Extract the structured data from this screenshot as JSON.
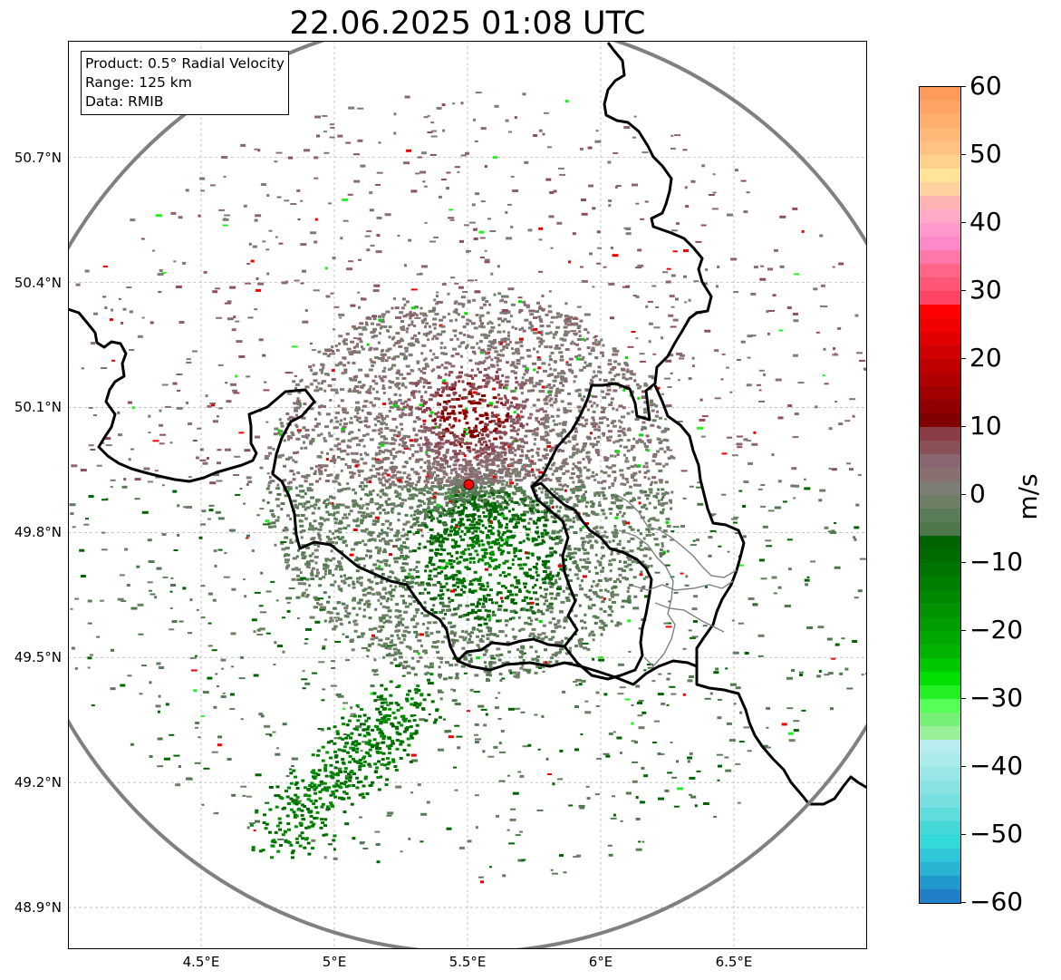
{
  "title": "22.06.2025 01:08 UTC",
  "info_box": {
    "product": "Product: 0.5° Radial Velocity",
    "range": "Range: 125 km",
    "data": "Data: RMIB"
  },
  "map": {
    "lon_range": [
      4.0,
      7.0
    ],
    "lat_range": [
      48.8,
      50.98
    ],
    "radar_site": {
      "lon": 5.505,
      "lat": 49.915
    },
    "range_km": 125,
    "lat_ticks": [
      {
        "value": 48.9,
        "label": "48.9°N"
      },
      {
        "value": 49.2,
        "label": "49.2°N"
      },
      {
        "value": 49.5,
        "label": "49.5°N"
      },
      {
        "value": 49.8,
        "label": "49.8°N"
      },
      {
        "value": 50.1,
        "label": "50.1°N"
      },
      {
        "value": 50.4,
        "label": "50.4°N"
      },
      {
        "value": 50.7,
        "label": "50.7°N"
      }
    ],
    "lon_ticks": [
      {
        "value": 4.5,
        "label": "4.5°E"
      },
      {
        "value": 5.0,
        "label": "5°E"
      },
      {
        "value": 5.5,
        "label": "5.5°E"
      },
      {
        "value": 6.0,
        "label": "6°E"
      },
      {
        "value": 6.5,
        "label": "6.5°E"
      }
    ],
    "colors": {
      "border": "#000000",
      "subborder": "#808080",
      "range_ring": "#808080",
      "grid": "#b0b0b0",
      "radar_site": "#ff0000"
    }
  },
  "colorbar": {
    "unit": "m/s",
    "min": -60,
    "max": 60,
    "ticks": [
      {
        "value": 60,
        "label": "60"
      },
      {
        "value": 50,
        "label": "50"
      },
      {
        "value": 40,
        "label": "40"
      },
      {
        "value": 30,
        "label": "30"
      },
      {
        "value": 20,
        "label": "20"
      },
      {
        "value": 10,
        "label": "10"
      },
      {
        "value": 0,
        "label": "0"
      },
      {
        "value": -10,
        "label": "−10"
      },
      {
        "value": -20,
        "label": "−20"
      },
      {
        "value": -30,
        "label": "−30"
      },
      {
        "value": -40,
        "label": "−40"
      },
      {
        "value": -50,
        "label": "−50"
      },
      {
        "value": -60,
        "label": "−60"
      }
    ],
    "segments": [
      {
        "from": 58,
        "to": 60,
        "color": "#ff9b5a"
      },
      {
        "from": 56,
        "to": 58,
        "color": "#ffa464"
      },
      {
        "from": 54,
        "to": 56,
        "color": "#ffae6e"
      },
      {
        "from": 52,
        "to": 54,
        "color": "#ffb878"
      },
      {
        "from": 50,
        "to": 52,
        "color": "#ffc282"
      },
      {
        "from": 48,
        "to": 50,
        "color": "#ffd28c"
      },
      {
        "from": 46,
        "to": 48,
        "color": "#ffe396"
      },
      {
        "from": 44,
        "to": 46,
        "color": "#ffd2a0"
      },
      {
        "from": 42,
        "to": 44,
        "color": "#ffb4b4"
      },
      {
        "from": 40,
        "to": 42,
        "color": "#ffaac8"
      },
      {
        "from": 38,
        "to": 40,
        "color": "#ff99cc"
      },
      {
        "from": 36,
        "to": 38,
        "color": "#ff88c8"
      },
      {
        "from": 34,
        "to": 36,
        "color": "#ff77aa"
      },
      {
        "from": 32,
        "to": 34,
        "color": "#ff6688"
      },
      {
        "from": 30,
        "to": 32,
        "color": "#ff5577"
      },
      {
        "from": 28,
        "to": 30,
        "color": "#ff4466"
      },
      {
        "from": 26,
        "to": 28,
        "color": "#ff0000"
      },
      {
        "from": 24,
        "to": 26,
        "color": "#f00000"
      },
      {
        "from": 22,
        "to": 24,
        "color": "#e00000"
      },
      {
        "from": 20,
        "to": 22,
        "color": "#d00000"
      },
      {
        "from": 18,
        "to": 20,
        "color": "#c00000"
      },
      {
        "from": 16,
        "to": 18,
        "color": "#b00000"
      },
      {
        "from": 14,
        "to": 16,
        "color": "#a00000"
      },
      {
        "from": 12,
        "to": 14,
        "color": "#900000"
      },
      {
        "from": 10,
        "to": 12,
        "color": "#800000"
      },
      {
        "from": 8,
        "to": 10,
        "color": "#8c3c44"
      },
      {
        "from": 6,
        "to": 8,
        "color": "#8a5058"
      },
      {
        "from": 4,
        "to": 6,
        "color": "#8a6670"
      },
      {
        "from": 2,
        "to": 4,
        "color": "#887070"
      },
      {
        "from": 0,
        "to": 2,
        "color": "#7d7d76"
      },
      {
        "from": -2,
        "to": 0,
        "color": "#6d8066"
      },
      {
        "from": -4,
        "to": -2,
        "color": "#5b7c58"
      },
      {
        "from": -6,
        "to": -4,
        "color": "#4e784c"
      },
      {
        "from": -8,
        "to": -6,
        "color": "#006400"
      },
      {
        "from": -10,
        "to": -8,
        "color": "#006c00"
      },
      {
        "from": -12,
        "to": -10,
        "color": "#007400"
      },
      {
        "from": -14,
        "to": -12,
        "color": "#007e00"
      },
      {
        "from": -16,
        "to": -14,
        "color": "#008800"
      },
      {
        "from": -18,
        "to": -16,
        "color": "#009200"
      },
      {
        "from": -20,
        "to": -18,
        "color": "#009c00"
      },
      {
        "from": -22,
        "to": -20,
        "color": "#00a800"
      },
      {
        "from": -24,
        "to": -22,
        "color": "#00b400"
      },
      {
        "from": -26,
        "to": -24,
        "color": "#00c800"
      },
      {
        "from": -28,
        "to": -26,
        "color": "#00e000"
      },
      {
        "from": -30,
        "to": -28,
        "color": "#22f022"
      },
      {
        "from": -32,
        "to": -30,
        "color": "#55ff55"
      },
      {
        "from": -34,
        "to": -32,
        "color": "#77f077"
      },
      {
        "from": -36,
        "to": -34,
        "color": "#99f099"
      },
      {
        "from": -38,
        "to": -36,
        "color": "#b8ecf0"
      },
      {
        "from": -40,
        "to": -38,
        "color": "#aaeaea"
      },
      {
        "from": -42,
        "to": -40,
        "color": "#99e6e6"
      },
      {
        "from": -44,
        "to": -42,
        "color": "#88e2e2"
      },
      {
        "from": -46,
        "to": -44,
        "color": "#77dfdf"
      },
      {
        "from": -48,
        "to": -46,
        "color": "#60dcdc"
      },
      {
        "from": -50,
        "to": -48,
        "color": "#44d8d8"
      },
      {
        "from": -52,
        "to": -50,
        "color": "#33d8d8"
      },
      {
        "from": -54,
        "to": -52,
        "color": "#2ec6d8"
      },
      {
        "from": -56,
        "to": -54,
        "color": "#28b4d2"
      },
      {
        "from": -58,
        "to": -56,
        "color": "#2299cc"
      },
      {
        "from": -60,
        "to": -58,
        "color": "#1f7fc8"
      }
    ]
  }
}
